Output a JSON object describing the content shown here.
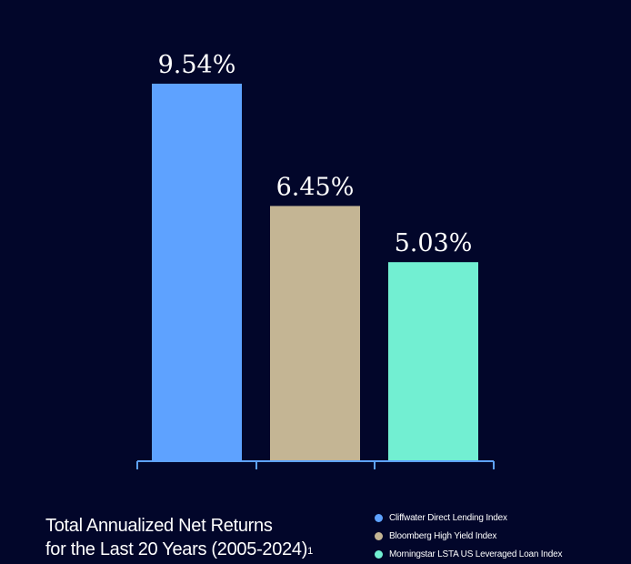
{
  "chart_data": {
    "type": "bar",
    "categories": [
      "Cliffwater Direct Lending Index",
      "Bloomberg High Yield Index",
      "Morningstar LSTA US Leveraged Loan Index"
    ],
    "values": [
      9.54,
      6.45,
      5.03
    ],
    "value_labels": [
      "9.54%",
      "6.45%",
      "5.03%"
    ],
    "colors": [
      "#5ea2ff",
      "#c4b594",
      "#72efd2"
    ],
    "ylim": [
      0,
      9.54
    ],
    "grid": false,
    "legend_position": "bottom-right",
    "title_lines": [
      "Total Annualized Net Returns",
      "for the Last 20 Years (2005-2024)"
    ],
    "title_footnote": "1"
  },
  "colors": {
    "background": "#02062a",
    "axis": "#5ea2ff"
  }
}
